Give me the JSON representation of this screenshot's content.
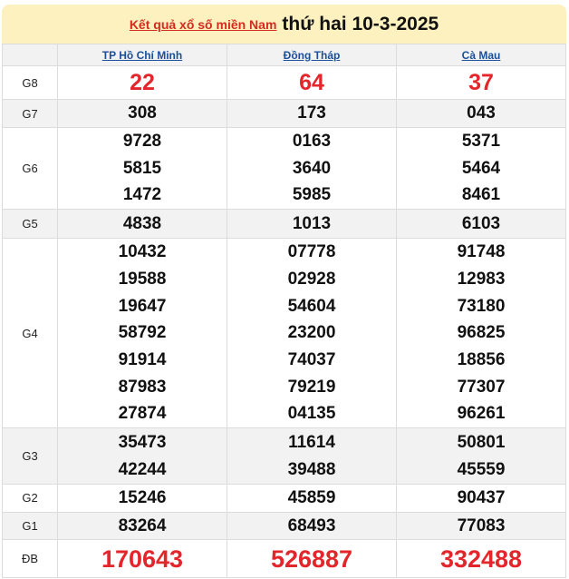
{
  "header": {
    "link_label": "Kết quả xổ số miền Nam",
    "date": "thứ hai 10-3-2025"
  },
  "provinces": [
    "TP Hồ Chí Minh",
    "Đồng Tháp",
    "Cà Mau"
  ],
  "prizes": [
    {
      "label": "G8",
      "style": "red",
      "values": [
        [
          "22"
        ],
        [
          "64"
        ],
        [
          "37"
        ]
      ]
    },
    {
      "label": "G7",
      "style": "normal",
      "values": [
        [
          "308"
        ],
        [
          "173"
        ],
        [
          "043"
        ]
      ]
    },
    {
      "label": "G6",
      "style": "normal",
      "values": [
        [
          "9728",
          "5815",
          "1472"
        ],
        [
          "0163",
          "3640",
          "5985"
        ],
        [
          "5371",
          "5464",
          "8461"
        ]
      ]
    },
    {
      "label": "G5",
      "style": "normal",
      "values": [
        [
          "4838"
        ],
        [
          "1013"
        ],
        [
          "6103"
        ]
      ]
    },
    {
      "label": "G4",
      "style": "normal",
      "values": [
        [
          "10432",
          "19588",
          "19647",
          "58792",
          "91914",
          "87983",
          "27874"
        ],
        [
          "07778",
          "02928",
          "54604",
          "23200",
          "74037",
          "79219",
          "04135"
        ],
        [
          "91748",
          "12983",
          "73180",
          "96825",
          "18856",
          "77307",
          "96261"
        ]
      ]
    },
    {
      "label": "G3",
      "style": "normal",
      "values": [
        [
          "35473",
          "42244"
        ],
        [
          "11614",
          "39488"
        ],
        [
          "50801",
          "45559"
        ]
      ]
    },
    {
      "label": "G2",
      "style": "normal",
      "values": [
        [
          "15246"
        ],
        [
          "45859"
        ],
        [
          "90437"
        ]
      ]
    },
    {
      "label": "G1",
      "style": "normal",
      "values": [
        [
          "83264"
        ],
        [
          "68493"
        ],
        [
          "77083"
        ]
      ]
    },
    {
      "label": "ĐB",
      "style": "db",
      "values": [
        [
          "170643"
        ],
        [
          "526887"
        ],
        [
          "332488"
        ]
      ]
    }
  ],
  "colors": {
    "prize_red": "#e3262b",
    "title_bg": "#fdf1c0",
    "link_blue": "#1a4f9c"
  }
}
